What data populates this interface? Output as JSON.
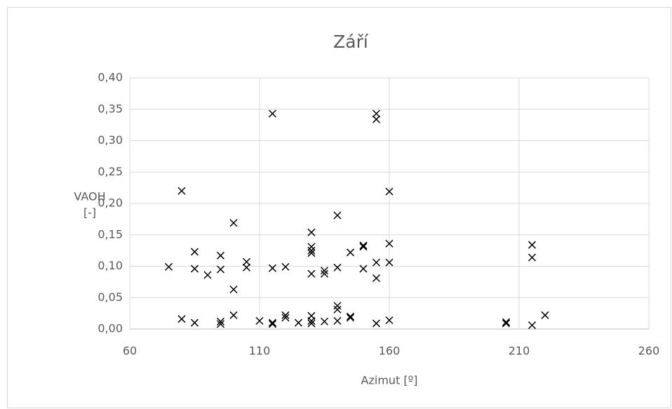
{
  "chart_data": {
    "type": "scatter",
    "title": "Září",
    "x_label": "Azimut [º]",
    "y_label": [
      "VAOH",
      "[-]"
    ],
    "color": "#000000",
    "marker": "x",
    "grid": true,
    "xlim": [
      60,
      260
    ],
    "xticks": [
      60,
      110,
      160,
      210,
      260
    ],
    "ylim": [
      0,
      0.4
    ],
    "yticks": [
      {
        "value": 0,
        "label": "0,00"
      },
      {
        "value": 0.05,
        "label": "0,05"
      },
      {
        "value": 0.1,
        "label": "0,10"
      },
      {
        "value": 0.15,
        "label": "0,15"
      },
      {
        "value": 0.2,
        "label": "0,20"
      },
      {
        "value": 0.25,
        "label": "0,25"
      },
      {
        "value": 0.3,
        "label": "0,30"
      },
      {
        "value": 0.35,
        "label": "0,35"
      },
      {
        "value": 0.4,
        "label": "0,40"
      }
    ],
    "x": [
      75,
      80,
      80,
      85,
      85,
      85,
      90,
      95,
      95,
      95,
      95,
      100,
      100,
      100,
      105,
      105,
      110,
      115,
      115,
      115,
      115,
      120,
      120,
      120,
      125,
      130,
      130,
      130,
      130,
      130,
      130,
      130,
      130,
      135,
      135,
      135,
      140,
      140,
      140,
      140,
      140,
      145,
      145,
      145,
      150,
      150,
      150,
      155,
      155,
      155,
      155,
      155,
      160,
      160,
      160,
      160,
      205,
      205,
      215,
      215,
      215,
      220
    ],
    "y": [
      0.099,
      0.22,
      0.016,
      0.123,
      0.096,
      0.01,
      0.086,
      0.117,
      0.095,
      0.012,
      0.008,
      0.169,
      0.063,
      0.022,
      0.107,
      0.098,
      0.013,
      0.343,
      0.097,
      0.01,
      0.008,
      0.099,
      0.022,
      0.018,
      0.01,
      0.154,
      0.131,
      0.125,
      0.121,
      0.088,
      0.021,
      0.013,
      0.009,
      0.093,
      0.088,
      0.012,
      0.181,
      0.098,
      0.037,
      0.031,
      0.013,
      0.122,
      0.02,
      0.018,
      0.133,
      0.131,
      0.096,
      0.343,
      0.334,
      0.106,
      0.081,
      0.009,
      0.219,
      0.136,
      0.106,
      0.014,
      0.011,
      0.009,
      0.134,
      0.114,
      0.006,
      0.022
    ]
  }
}
